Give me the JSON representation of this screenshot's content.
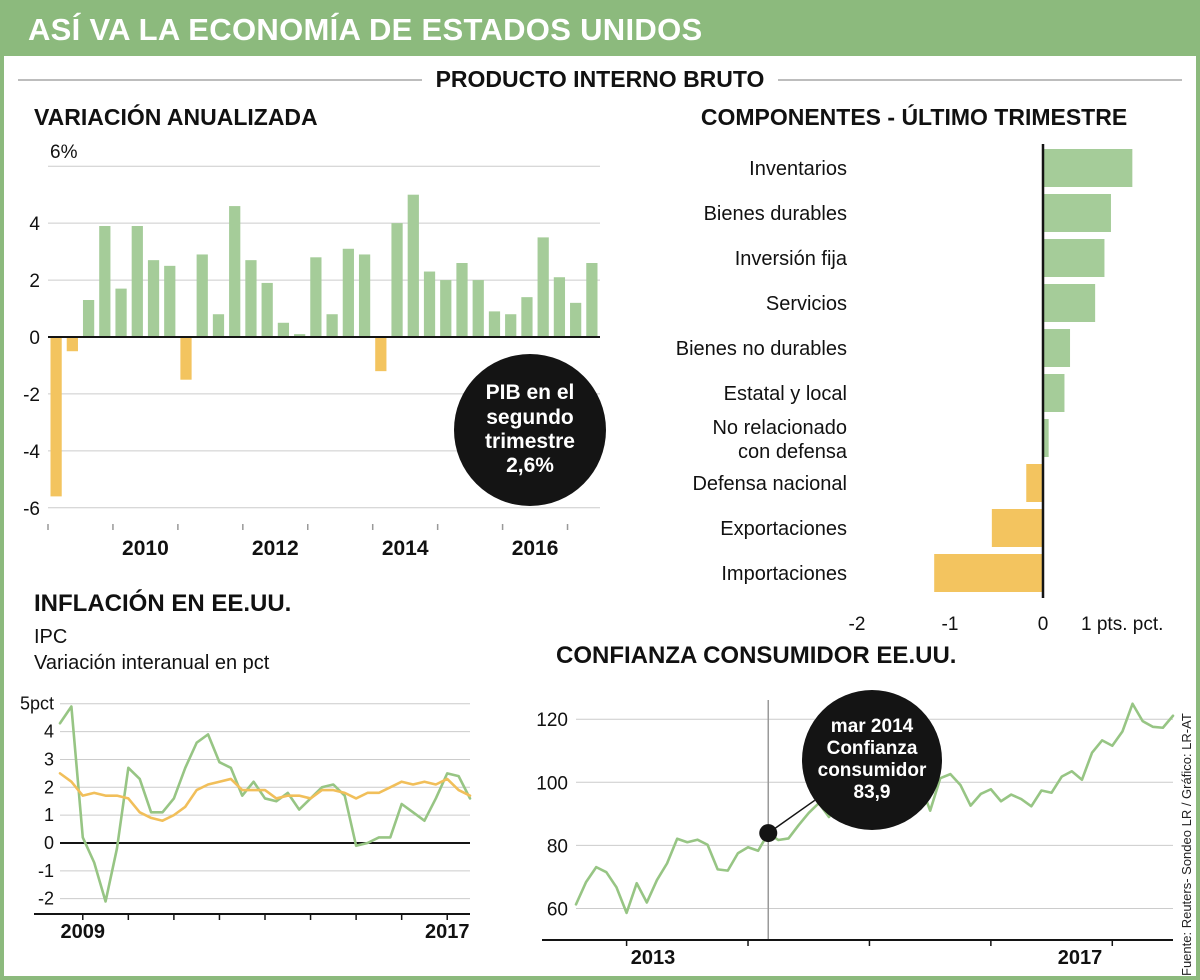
{
  "header": {
    "title": "ASÍ VA LA ECONOMÍA DE ESTADOS UNIDOS"
  },
  "section": {
    "title": "PRODUCTO INTERNO BRUTO"
  },
  "source": "Fuente: Reuters- Sondeo LR / Gráfico: LR-AT",
  "colors": {
    "banner_green": "#8cba7d",
    "bar_green": "#a5cc99",
    "bar_orange": "#f3c45f",
    "line_green": "#97c584",
    "line_orange": "#f1bf5a",
    "grid_gray": "#cccccc",
    "axis_black": "#141414"
  },
  "chart_data": [
    {
      "id": "gdp_annualized",
      "type": "bar",
      "title": "VARIACIÓN ANUALIZADA",
      "unit": "pct",
      "frequency": "quarterly",
      "start_year": 2009,
      "ytick_top_label": "6%",
      "yticks": [
        6,
        4,
        2,
        0,
        -2,
        -4,
        -6
      ],
      "ylim": [
        -6.5,
        6.5
      ],
      "xtick_labels": [
        "2010",
        "2012",
        "2014",
        "2016"
      ],
      "values": [
        -5.6,
        -0.5,
        1.3,
        3.9,
        1.7,
        3.9,
        2.7,
        2.5,
        -1.5,
        2.9,
        0.8,
        4.6,
        2.7,
        1.9,
        0.5,
        0.1,
        2.8,
        0.8,
        3.1,
        2.9,
        -1.2,
        4.0,
        5.0,
        2.3,
        2.0,
        2.6,
        2.0,
        0.9,
        0.8,
        1.4,
        3.5,
        2.1,
        1.2,
        2.6
      ],
      "annotation": {
        "lines": [
          "PIB en el",
          "segundo",
          "trimestre",
          "2,6%"
        ]
      }
    },
    {
      "id": "gdp_components",
      "type": "bar_horizontal",
      "title": "COMPONENTES - ÚLTIMO TRIMESTRE",
      "unit": "pts. pct.",
      "categories": [
        "Inventarios",
        "Bienes durables",
        "Inversión fija",
        "Servicios",
        "Bienes no durables",
        "Estatal y local",
        "No relacionado\ncon defensa",
        "Defensa nacional",
        "Exportaciones",
        "Importaciones"
      ],
      "values": [
        0.95,
        0.72,
        0.65,
        0.55,
        0.28,
        0.22,
        0.05,
        -0.18,
        -0.55,
        -1.17
      ],
      "xticks": [
        -2,
        -1,
        0
      ],
      "xtick_labels": [
        "-2",
        "-1",
        "0"
      ],
      "x_axis_end_label": "1 pts. pct.",
      "xlim": [
        -2.2,
        1.1
      ]
    },
    {
      "id": "inflation_us",
      "type": "line",
      "title": "INFLACIÓN EN EE.UU.",
      "subtitle_line1": "IPC",
      "subtitle_line2": "Variación interanual en pct",
      "yticks": [
        5,
        4,
        3,
        2,
        1,
        0,
        -1,
        -2
      ],
      "ytick_labels": [
        "5pct",
        "4",
        "3",
        "2",
        "1",
        "0",
        "-1",
        "-2"
      ],
      "x_start": 2008.5,
      "x_step": 0.25,
      "xtick_labels": [
        "2009",
        "2017"
      ],
      "series": [
        {
          "color": "green",
          "values": [
            4.3,
            4.9,
            0.2,
            -0.7,
            -2.1,
            -0.2,
            2.7,
            2.3,
            1.1,
            1.1,
            1.6,
            2.7,
            3.6,
            3.9,
            2.9,
            2.7,
            1.7,
            2.2,
            1.6,
            1.5,
            1.8,
            1.2,
            1.6,
            2.0,
            2.1,
            1.7,
            -0.1,
            0.0,
            0.2,
            0.2,
            1.4,
            1.1,
            0.8,
            1.6,
            2.5,
            2.4,
            1.6
          ]
        },
        {
          "color": "orange",
          "values": [
            2.5,
            2.2,
            1.7,
            1.8,
            1.7,
            1.7,
            1.6,
            1.1,
            0.9,
            0.8,
            1.0,
            1.3,
            1.9,
            2.1,
            2.2,
            2.3,
            1.9,
            1.9,
            1.9,
            1.6,
            1.7,
            1.7,
            1.6,
            1.9,
            1.9,
            1.8,
            1.6,
            1.8,
            1.8,
            2.0,
            2.2,
            2.1,
            2.2,
            2.1,
            2.3,
            1.9,
            1.7
          ]
        }
      ]
    },
    {
      "id": "consumer_confidence_us",
      "type": "line",
      "title": "CONFIANZA CONSUMIDOR EE.UU.",
      "frequency": "monthly",
      "start": {
        "year": 2012,
        "month": 8
      },
      "yticks": [
        120,
        100,
        80,
        60
      ],
      "xtick_labels": [
        "2013",
        "2017"
      ],
      "values": [
        61.3,
        68.4,
        73.1,
        71.5,
        66.7,
        58.6,
        68.0,
        61.9,
        69.0,
        74.3,
        82.1,
        81.0,
        81.8,
        80.2,
        72.4,
        72.0,
        77.5,
        79.4,
        78.3,
        83.9,
        81.7,
        82.2,
        86.4,
        90.3,
        93.4,
        89.0,
        94.1,
        91.0,
        93.1,
        103.8,
        98.8,
        101.4,
        94.3,
        94.6,
        99.8,
        91.0,
        101.3,
        102.6,
        99.1,
        92.6,
        96.3,
        97.8,
        94.0,
        96.1,
        94.7,
        92.4,
        97.4,
        96.7,
        101.8,
        103.5,
        100.8,
        109.4,
        113.3,
        111.6,
        116.1,
        124.9,
        119.4,
        117.6,
        117.3,
        121.1
      ],
      "annotation": {
        "lines": [
          "mar 2014",
          "Confianza",
          "consumidor",
          "83,9"
        ],
        "point_index": 19,
        "point_value": 83.9
      }
    }
  ]
}
